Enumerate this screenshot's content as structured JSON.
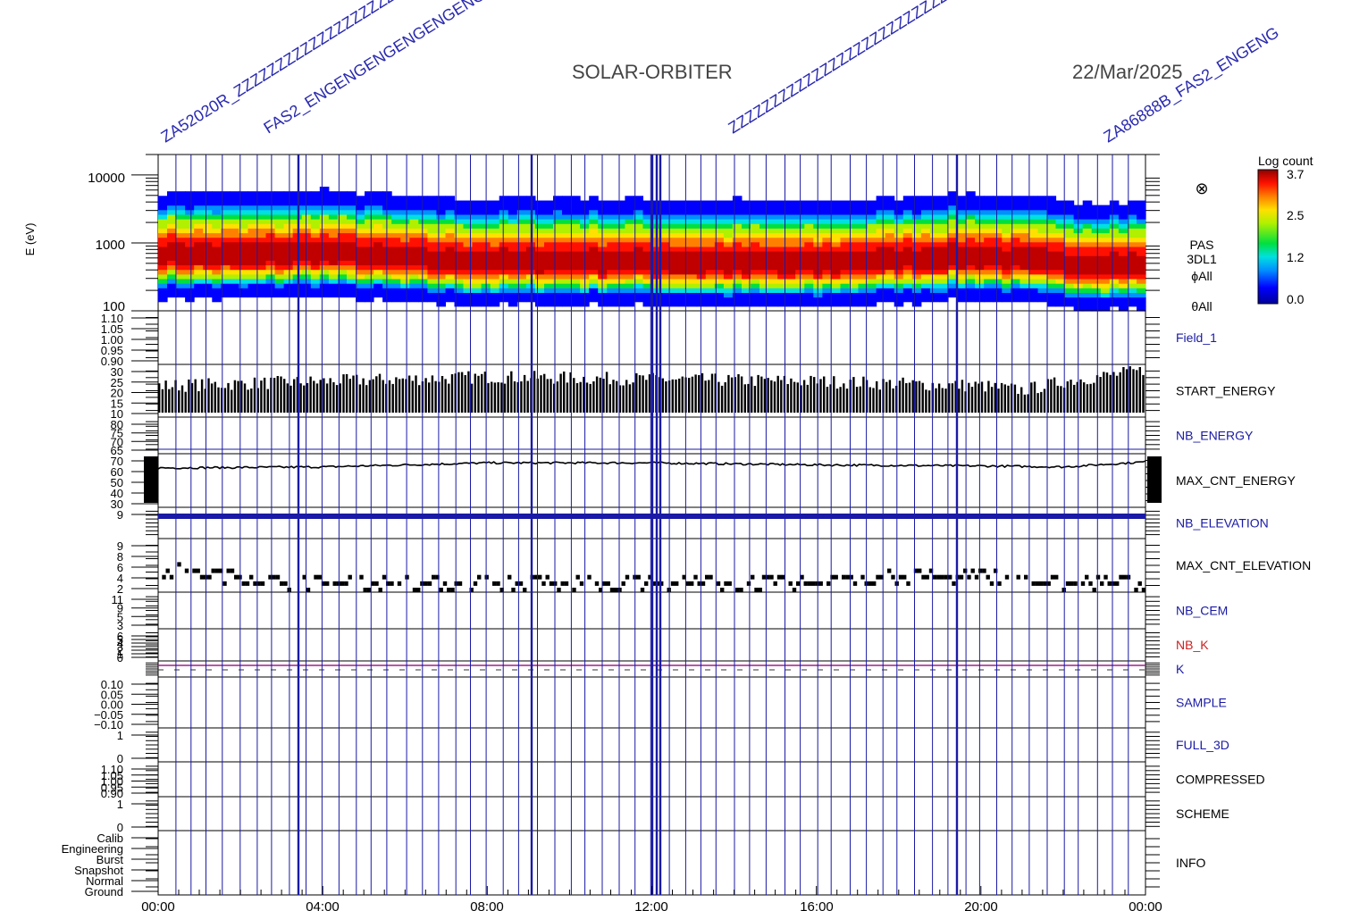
{
  "header": {
    "mission": "SOLAR-ORBITER",
    "date": "22/Mar/2025"
  },
  "colorbar": {
    "title": "Log count",
    "ticks": [
      "3.7",
      "2.5",
      "1.2",
      "0.0"
    ]
  },
  "spectrogram": {
    "ylabel": "E (eV)",
    "yticks": [
      "10000",
      "1000",
      "100"
    ],
    "side_symbol": "⊗",
    "side_labels": [
      "PAS",
      "3DL1",
      "ϕAll",
      "θAll"
    ]
  },
  "panels": [
    {
      "label": "Field_1",
      "color": "#1a1aa6",
      "yticks": [
        "1.10",
        "1.05",
        "1.00",
        "0.95",
        "0.90"
      ]
    },
    {
      "label": "START_ENERGY",
      "color": "#000000",
      "yticks": [
        "30",
        "25",
        "20",
        "15",
        "10"
      ]
    },
    {
      "label": "NB_ENERGY",
      "color": "#1a1aa6",
      "yticks": [
        "80",
        "75",
        "70",
        "65"
      ]
    },
    {
      "label": "MAX_CNT_ENERGY",
      "color": "#000000",
      "yticks": [
        "70",
        "60",
        "50",
        "40",
        "30"
      ]
    },
    {
      "label": "NB_ELEVATION",
      "color": "#1a1aa6",
      "yticks": [
        "9"
      ]
    },
    {
      "label": "MAX_CNT_ELEVATION",
      "color": "#000000",
      "yticks": [
        "9",
        "8",
        "6",
        "4",
        "2"
      ]
    },
    {
      "label": "NB_CEM",
      "color": "#1a1aa6",
      "yticks": [
        "11",
        "9",
        "5",
        "3"
      ]
    },
    {
      "label": "NB_K",
      "color": "#cc2020",
      "yticks": [
        "6",
        "5",
        "4",
        "3",
        "2",
        "1",
        "0"
      ]
    },
    {
      "label": "K",
      "color": "#1a1aa6",
      "yticks": []
    },
    {
      "label": "SAMPLE",
      "color": "#1a1aa6",
      "yticks": [
        "0.10",
        "0.05",
        "0.00",
        "−0.05",
        "−0.10"
      ]
    },
    {
      "label": "FULL_3D",
      "color": "#1a1aa6",
      "yticks": [
        "1",
        "0"
      ]
    },
    {
      "label": "COMPRESSED",
      "color": "#000000",
      "yticks": [
        "1.10",
        "1.05",
        "1.00",
        "0.95",
        "0.90"
      ]
    },
    {
      "label": "SCHEME",
      "color": "#000000",
      "yticks": [
        "1",
        "0"
      ]
    },
    {
      "label": "INFO",
      "color": "#000000",
      "yticks": [
        "Calib",
        "Engineering",
        "Burst",
        "Snapshot",
        "Normal",
        "Ground"
      ]
    }
  ],
  "xaxis": {
    "ticks": [
      "00:00",
      "04:00",
      "08:00",
      "12:00",
      "16:00",
      "20:00",
      "00:00"
    ]
  },
  "colors": {
    "axis": "#000000",
    "marker": "#1a1aa6",
    "nb_k": "#cc2020",
    "k_line": "#a0208c"
  },
  "chart_data": {
    "type": "heatmap",
    "title": "SOLAR-ORBITER 22/Mar/2025",
    "xlabel": "",
    "ylabel": "E (eV)",
    "x_range": [
      "00:00",
      "24:00"
    ],
    "y_range_eV": [
      100,
      20000
    ],
    "y_scale": "log",
    "z_label": "Log count",
    "z_range": [
      0.0,
      3.7
    ],
    "peak_energy_eV": {
      "hours": [
        0,
        2,
        4,
        6,
        8,
        10,
        12,
        14,
        16,
        18,
        20,
        22,
        24
      ],
      "values": [
        650,
        620,
        680,
        560,
        500,
        520,
        500,
        480,
        470,
        540,
        600,
        470,
        440
      ]
    },
    "start_energy": {
      "hours": [
        0,
        4,
        8,
        12,
        16,
        20,
        21,
        22,
        24
      ],
      "values": [
        22,
        24,
        26,
        25,
        24,
        22,
        20,
        24,
        29
      ]
    },
    "max_cnt_energy": {
      "hours": [
        0,
        4,
        8,
        12,
        16,
        20,
        22,
        24
      ],
      "values": [
        61,
        62,
        66,
        66,
        64,
        63,
        62,
        67
      ]
    },
    "nb_elevation": 9,
    "max_cnt_elevation": {
      "hours": [
        0,
        2,
        4,
        6,
        8,
        10,
        12,
        14,
        16,
        18,
        20,
        22,
        24
      ],
      "values": [
        5,
        4,
        3,
        3,
        3,
        3,
        3,
        3,
        3,
        4,
        4,
        3,
        3
      ]
    },
    "k_value": 1
  }
}
